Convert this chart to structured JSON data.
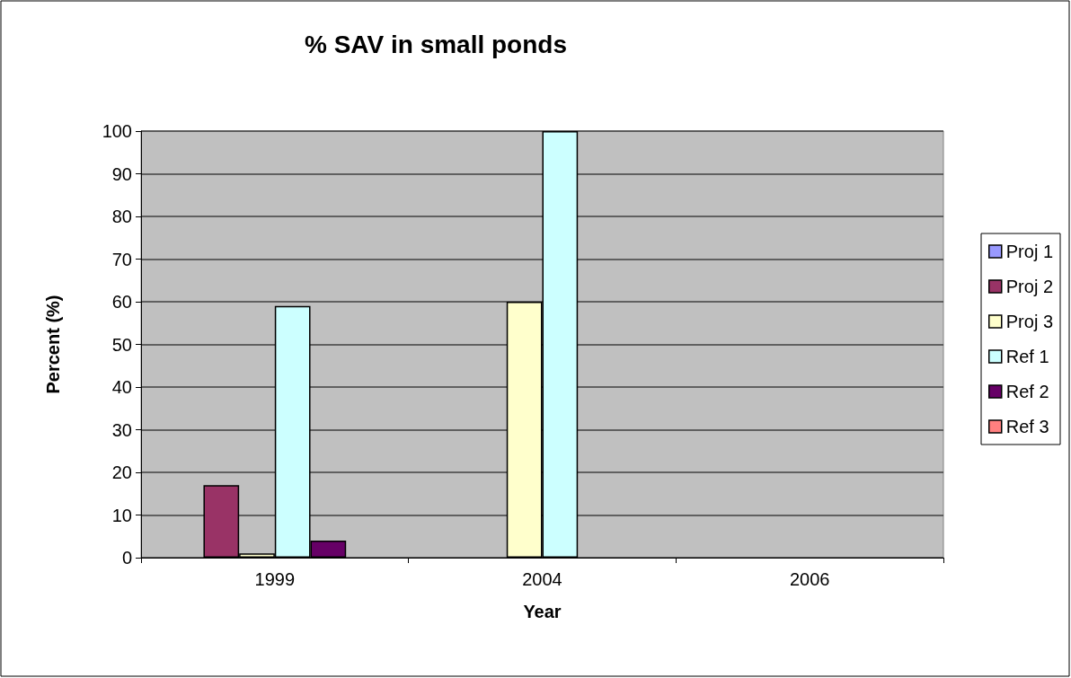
{
  "chart_data": {
    "type": "bar",
    "title": "% SAV in small ponds",
    "xlabel": "Year",
    "ylabel": "Percent (%)",
    "categories": [
      "1999",
      "2004",
      "2006"
    ],
    "series": [
      {
        "name": "Proj 1",
        "color": "#9999ff",
        "values": [
          null,
          null,
          null
        ]
      },
      {
        "name": "Proj 2",
        "color": "#993366",
        "values": [
          17,
          null,
          null
        ]
      },
      {
        "name": "Proj 3",
        "color": "#ffffcc",
        "values": [
          1,
          60,
          null
        ]
      },
      {
        "name": "Ref 1",
        "color": "#ccffff",
        "values": [
          59,
          100,
          null
        ]
      },
      {
        "name": "Ref 2",
        "color": "#660066",
        "values": [
          4,
          null,
          null
        ]
      },
      {
        "name": "Ref 3",
        "color": "#ff8080",
        "values": [
          null,
          null,
          null
        ]
      }
    ],
    "ylim": [
      0,
      100
    ],
    "yticks": [
      0,
      10,
      20,
      30,
      40,
      50,
      60,
      70,
      80,
      90,
      100
    ],
    "grid": "y",
    "legend": "right"
  }
}
